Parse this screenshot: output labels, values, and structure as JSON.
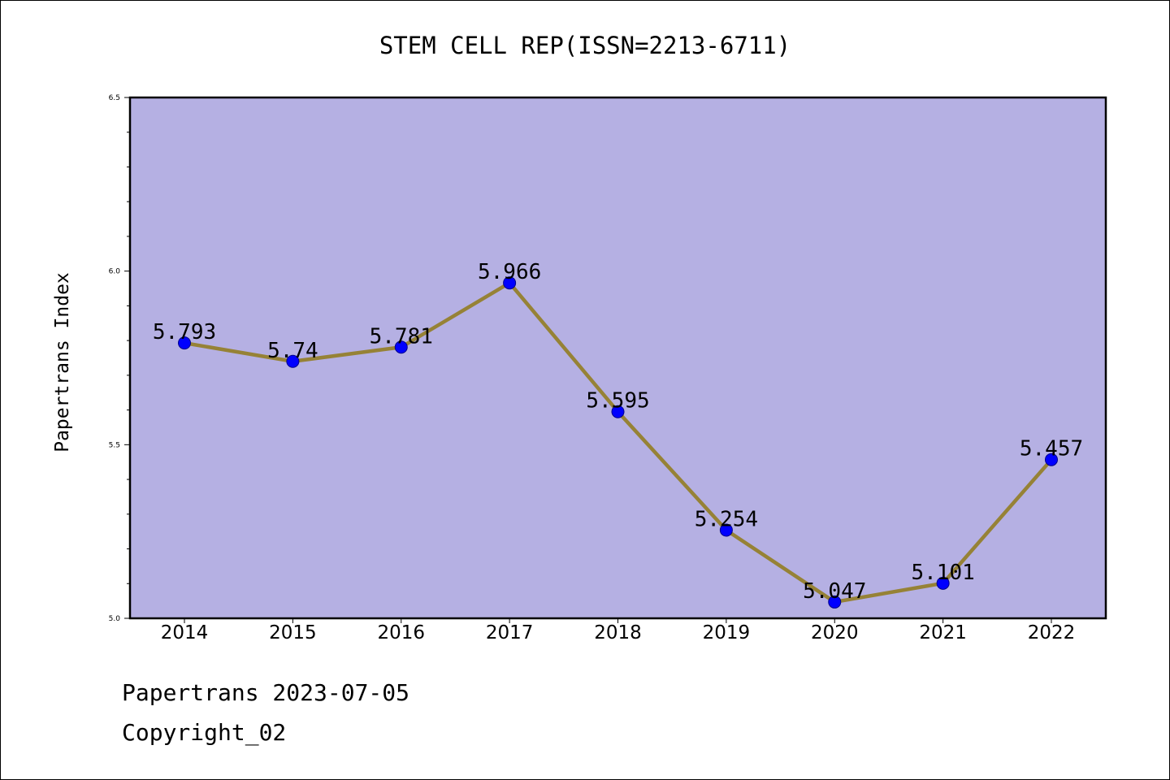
{
  "chart_data": {
    "type": "line",
    "title": "STEM CELL REP(ISSN=2213-6711)",
    "xlabel": "",
    "ylabel": "Papertrans Index",
    "categories": [
      "2014",
      "2015",
      "2016",
      "2017",
      "2018",
      "2019",
      "2020",
      "2021",
      "2022"
    ],
    "values": [
      5.793,
      5.74,
      5.781,
      5.966,
      5.595,
      5.254,
      5.047,
      5.101,
      5.457
    ],
    "data_labels": [
      "5.793",
      "5.74",
      "5.781",
      "5.966",
      "5.595",
      "5.254",
      "5.047",
      "5.101",
      "5.457"
    ],
    "ylim": [
      5.0,
      6.5
    ],
    "yticks": [
      "5.0",
      "5.5",
      "6.0",
      "6.5"
    ],
    "ytick_values": [
      5.0,
      5.5,
      6.0,
      6.5
    ],
    "grid": false,
    "legend": "none",
    "colors": {
      "plot_background": "#b5b0e3",
      "line": "#968236",
      "marker": "#0000ff",
      "marker_edge": "#00008b"
    }
  },
  "footer": {
    "date_line": "Papertrans 2023-07-05",
    "copyright_line": "Copyright_02"
  }
}
